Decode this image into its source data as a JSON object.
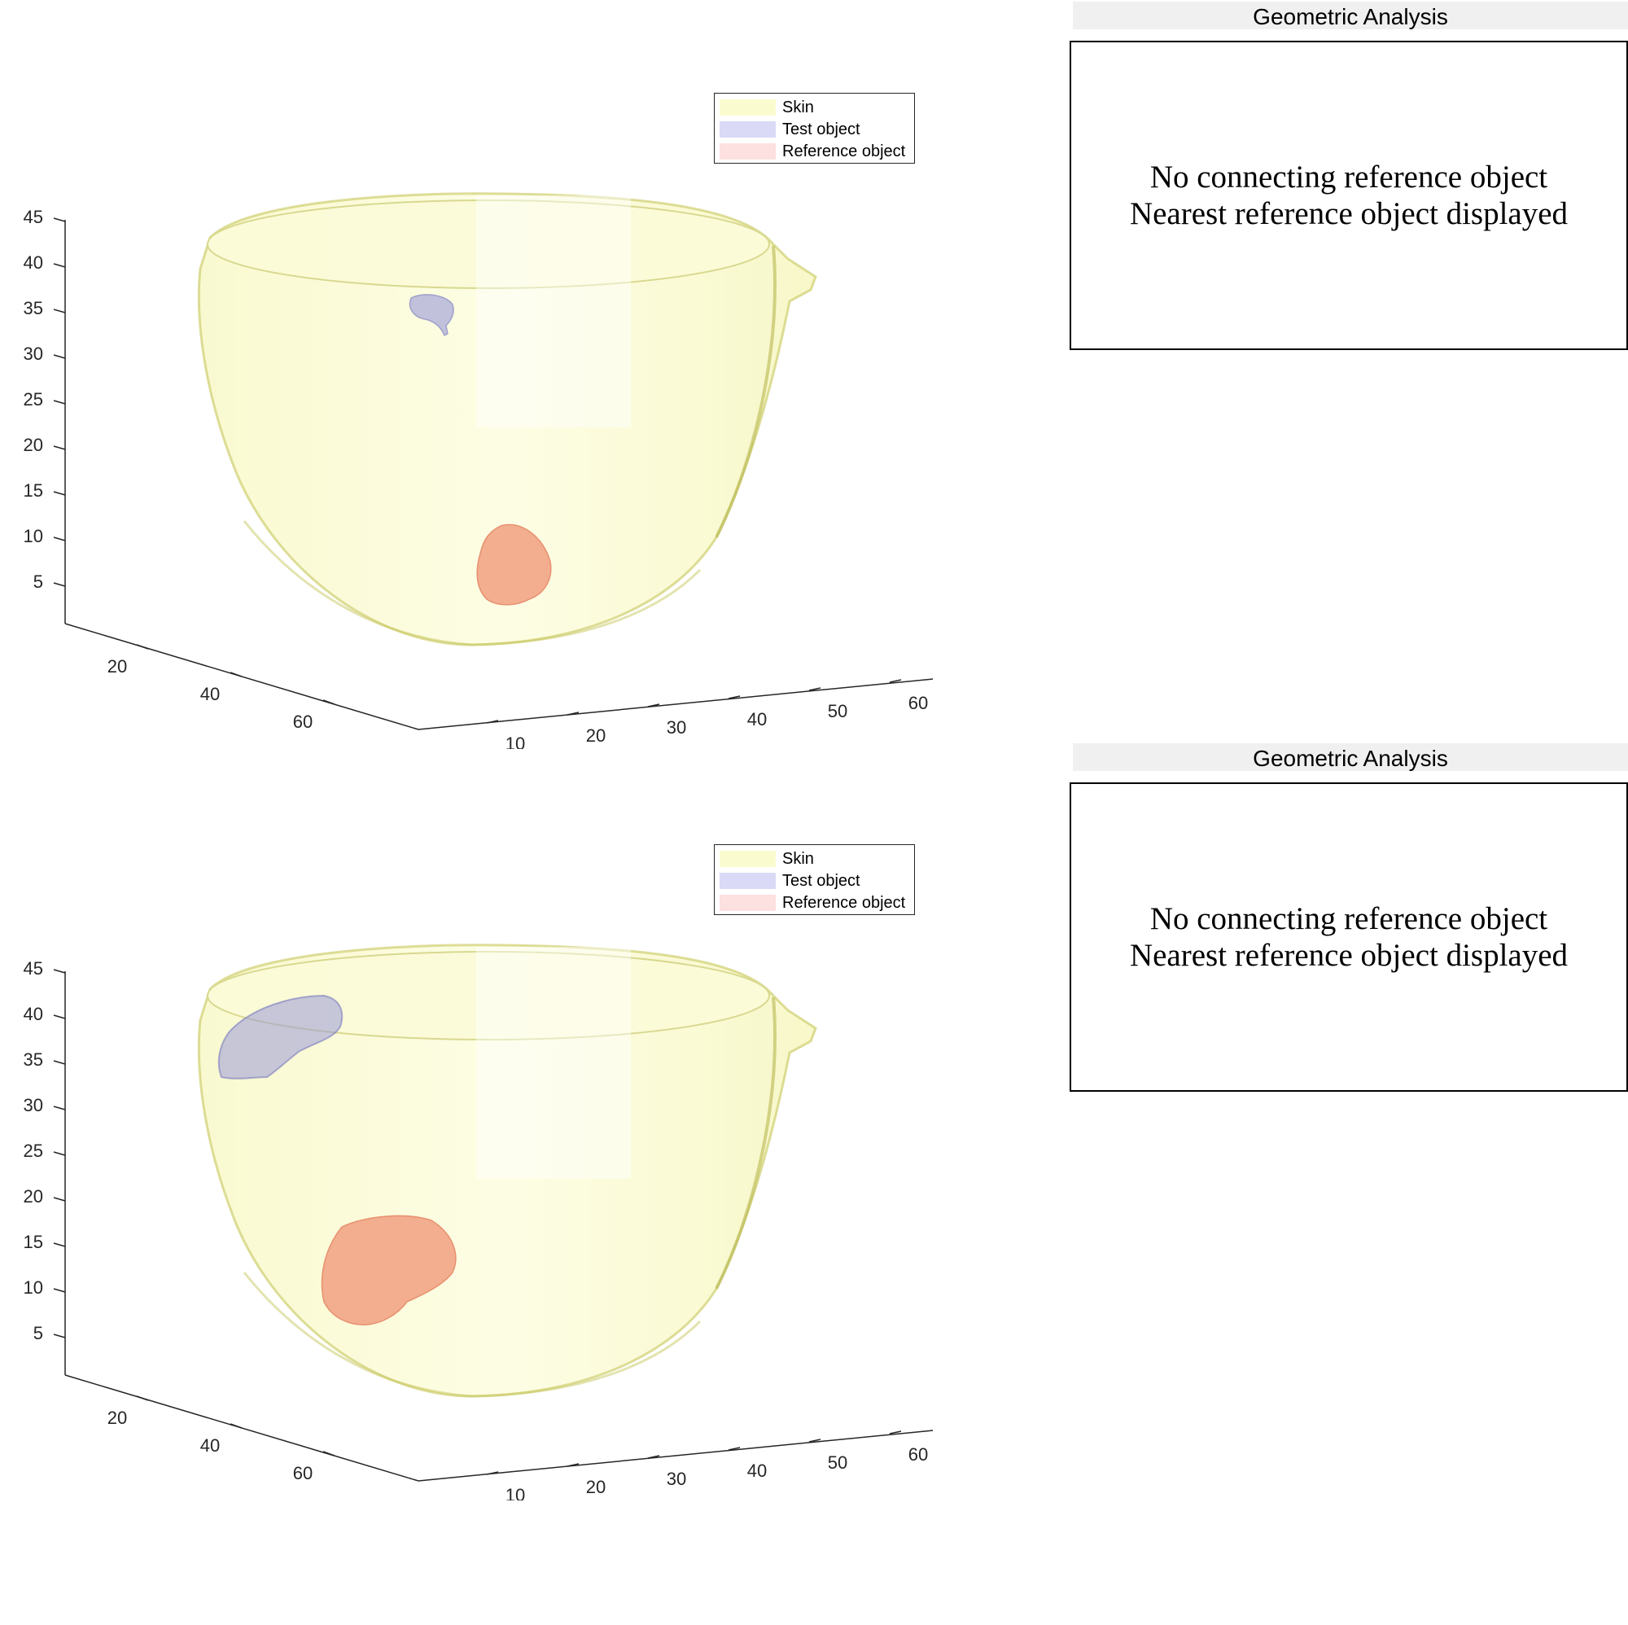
{
  "colors": {
    "skin": "#fbfbd0",
    "skin_edge": "#cfcf70",
    "test_object": "#9a9ad8",
    "reference_object": "#f0a080",
    "panel_title_bg": "#f0f0f0",
    "axis": "#262626"
  },
  "plots": [
    {
      "legend": [
        "Skin",
        "Test object",
        "Reference object"
      ],
      "axes": {
        "z_ticks": [
          "45",
          "40",
          "35",
          "30",
          "25",
          "20",
          "15",
          "10",
          "5"
        ],
        "y_ticks": [
          "20",
          "40",
          "60"
        ],
        "x_ticks": [
          "10",
          "20",
          "30",
          "40",
          "50",
          "60"
        ]
      }
    },
    {
      "legend": [
        "Skin",
        "Test object",
        "Reference object"
      ],
      "axes": {
        "z_ticks": [
          "45",
          "40",
          "35",
          "30",
          "25",
          "20",
          "15",
          "10",
          "5"
        ],
        "y_ticks": [
          "20",
          "40",
          "60"
        ],
        "x_ticks": [
          "10",
          "20",
          "30",
          "40",
          "50",
          "60"
        ]
      }
    }
  ],
  "panels": [
    {
      "title": "Geometric Analysis",
      "message_line1": "No connecting reference object",
      "message_line2": "Nearest reference object displayed"
    },
    {
      "title": "Geometric Analysis",
      "message_line1": "No connecting reference object",
      "message_line2": "Nearest reference object displayed"
    }
  ]
}
